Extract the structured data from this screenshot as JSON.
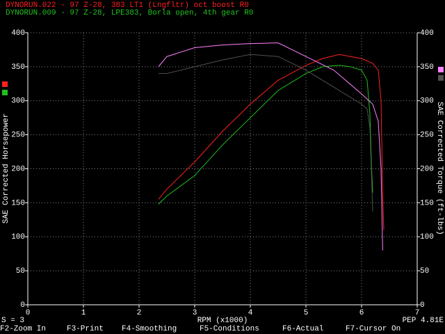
{
  "chart_data": {
    "type": "line",
    "header_lines": [
      {
        "text": "DYNORUN.022 - 97 Z-28, 383 LT1 (Lngfltr) oct boost  R0",
        "color": "#ff2020"
      },
      {
        "text": "DYNORUN.009 - 97 Z-28, LPE383, Borla open, 4th gear R0",
        "color": "#20c020"
      }
    ],
    "ylabel": "SAE Corrected Horsepower",
    "y2label": "SAE Corrected Torque (ft-lbs)",
    "xlabel": "RPM (x1000)",
    "smoothing_label": "S = 3",
    "pep_label": "PEP 4.81E",
    "xlim": [
      0,
      7
    ],
    "xticks": [
      0,
      1,
      2,
      3,
      4,
      5,
      6,
      7
    ],
    "ylim": [
      0,
      400
    ],
    "yticks": [
      0,
      50,
      100,
      150,
      200,
      250,
      300,
      350,
      400
    ],
    "y2lim": [
      0,
      400
    ],
    "y2ticks": [
      0,
      50,
      100,
      150,
      200,
      250,
      300,
      350,
      400
    ],
    "grid": true,
    "series": [
      {
        "color": "#ff2020",
        "axis": "y",
        "x": [
          2.35,
          2.5,
          3,
          3.5,
          4,
          4.5,
          5,
          5.3,
          5.6,
          5.8,
          6.0,
          6.2,
          6.3,
          6.35,
          6.38,
          6.4
        ],
        "values": [
          155,
          170,
          210,
          255,
          295,
          330,
          352,
          362,
          368,
          365,
          362,
          355,
          345,
          300,
          160,
          110
        ]
      },
      {
        "color": "#20c020",
        "axis": "y",
        "x": [
          2.35,
          2.5,
          3,
          3.5,
          4,
          4.5,
          5,
          5.3,
          5.6,
          5.8,
          6.0,
          6.1,
          6.15,
          6.18,
          6.2
        ],
        "values": [
          148,
          160,
          190,
          235,
          275,
          315,
          340,
          350,
          352,
          350,
          345,
          330,
          280,
          200,
          165
        ]
      },
      {
        "color": "#ff80ff",
        "axis": "y2",
        "x": [
          2.35,
          2.5,
          3,
          3.5,
          4,
          4.5,
          5,
          5.5,
          6.0,
          6.2,
          6.3,
          6.35,
          6.38
        ],
        "values": [
          350,
          365,
          378,
          382,
          384,
          385,
          365,
          345,
          310,
          295,
          270,
          200,
          80
        ]
      },
      {
        "color": "#505050",
        "axis": "y2",
        "x": [
          2.35,
          2.5,
          3,
          3.5,
          4,
          4.5,
          5,
          5.5,
          6.0,
          6.1,
          6.15,
          6.2
        ],
        "values": [
          340,
          340,
          350,
          360,
          368,
          365,
          345,
          320,
          295,
          288,
          260,
          137
        ]
      }
    ],
    "function_keys": [
      "F2-Zoom In",
      "F3-Print",
      "F4-Smoothing",
      "F5-Conditions",
      "F6-Actual",
      "F7-Cursor On"
    ]
  }
}
